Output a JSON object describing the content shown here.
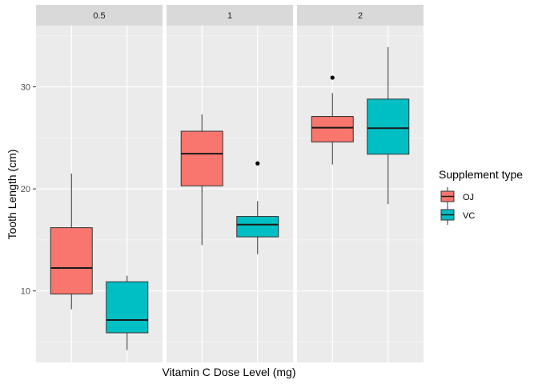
{
  "chart_data": {
    "type": "boxplot",
    "xlabel": "Vitamin C Dose Level (mg)",
    "ylabel": "Tooth Length (cm)",
    "ylim": [
      3,
      36
    ],
    "yticks": [
      10,
      20,
      30
    ],
    "grid": true,
    "facets": [
      "0.5",
      "1",
      "2"
    ],
    "legend": {
      "title": "Supplement type",
      "position": "right",
      "items": [
        {
          "label": "OJ",
          "color": "#F8766D"
        },
        {
          "label": "VC",
          "color": "#00BFC4"
        }
      ]
    },
    "series": [
      {
        "group": "OJ",
        "color": "#F8766D",
        "boxes": [
          {
            "facet": "0.5",
            "min": 8.2,
            "q1": 9.7,
            "median": 12.25,
            "q3": 16.2,
            "max": 21.5,
            "outliers": []
          },
          {
            "facet": "1",
            "min": 14.5,
            "q1": 20.3,
            "median": 23.45,
            "q3": 25.65,
            "max": 27.3,
            "outliers": []
          },
          {
            "facet": "2",
            "min": 22.4,
            "q1": 24.6,
            "median": 26.0,
            "q3": 27.1,
            "max": 29.4,
            "outliers": [
              30.9
            ]
          }
        ]
      },
      {
        "group": "VC",
        "color": "#00BFC4",
        "boxes": [
          {
            "facet": "0.5",
            "min": 4.2,
            "q1": 5.9,
            "median": 7.15,
            "q3": 10.9,
            "max": 11.5,
            "outliers": []
          },
          {
            "facet": "1",
            "min": 13.6,
            "q1": 15.3,
            "median": 16.5,
            "q3": 17.3,
            "max": 18.8,
            "outliers": [
              22.5
            ]
          },
          {
            "facet": "2",
            "min": 18.5,
            "q1": 23.4,
            "median": 25.95,
            "q3": 28.8,
            "max": 33.9,
            "outliers": []
          }
        ]
      }
    ]
  }
}
